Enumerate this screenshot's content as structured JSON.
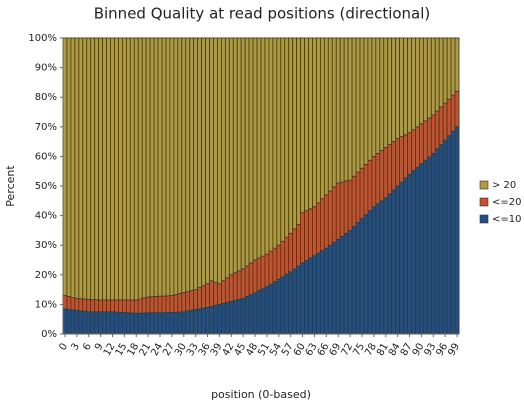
{
  "chart_data": {
    "type": "stacked_bar",
    "title": "Binned Quality at read positions (directional)",
    "x_label": "position (0-based)",
    "y_label": "Percent",
    "categories": [
      "0",
      null,
      null,
      "3",
      null,
      null,
      "6",
      null,
      null,
      "9",
      null,
      null,
      "12",
      null,
      null,
      "15",
      null,
      null,
      "18",
      null,
      null,
      "21",
      null,
      null,
      "24",
      null,
      null,
      "27",
      null,
      null,
      "30",
      null,
      null,
      "33",
      null,
      null,
      "36",
      null,
      null,
      "39",
      null,
      null,
      "42",
      null,
      null,
      "45",
      null,
      null,
      "48",
      null,
      null,
      "51",
      null,
      null,
      "54",
      null,
      null,
      "57",
      null,
      null,
      "60",
      null,
      null,
      "63",
      null,
      null,
      "66",
      null,
      null,
      "69",
      null,
      null,
      "72",
      null,
      null,
      "75",
      null,
      null,
      "78",
      null,
      null,
      "81",
      null,
      null,
      "84",
      null,
      null,
      "87",
      null,
      null,
      "90",
      null,
      null,
      "93",
      null,
      null,
      "96",
      null,
      null,
      "99"
    ],
    "series": [
      {
        "name": "<=10",
        "color": "#1f4f88",
        "values": [
          8.5,
          8.3,
          8.2,
          8,
          7.8,
          7.7,
          7.5,
          7.5,
          7.5,
          7.5,
          7.5,
          7.5,
          7.5,
          7.4,
          7.3,
          7.3,
          7.2,
          7.1,
          7,
          7,
          7.1,
          7.1,
          7.2,
          7.2,
          7.2,
          7.2,
          7.3,
          7.3,
          7.3,
          7.4,
          7.5,
          7.8,
          8,
          8.3,
          8.5,
          8.8,
          9,
          9.3,
          9.7,
          10,
          10.3,
          10.7,
          11,
          11.3,
          11.7,
          12,
          12.7,
          13.3,
          14,
          14.7,
          15.3,
          16,
          16.8,
          17.7,
          18.5,
          19.3,
          20.2,
          21,
          22,
          23,
          24,
          24.8,
          25.7,
          26.5,
          27.3,
          28.2,
          29,
          30,
          31,
          32,
          33,
          34,
          35,
          36.3,
          37.7,
          39,
          40.3,
          41.7,
          43,
          44,
          45,
          46,
          47.3,
          48.7,
          50,
          51.3,
          52.7,
          54,
          55.2,
          56.3,
          57.5,
          58.7,
          59.8,
          61,
          62.5,
          64,
          65.5,
          67,
          68.5,
          70
        ]
      },
      {
        "name": "<=20",
        "color": "#c8502a",
        "values": [
          4.5,
          4.4,
          4.1,
          4,
          4.1,
          4.1,
          4.2,
          4.1,
          4.1,
          4,
          4,
          4,
          4,
          4.1,
          4.2,
          4.2,
          4.3,
          4.4,
          4.5,
          4.8,
          5.1,
          5.4,
          5.4,
          5.5,
          5.6,
          5.6,
          5.6,
          5.7,
          6,
          6.3,
          6.5,
          6.5,
          6.7,
          6.7,
          7.2,
          7.5,
          8,
          8.7,
          7.8,
          7,
          7.7,
          8.3,
          9,
          9.4,
          9.6,
          10,
          10.3,
          10.7,
          11,
          11,
          11,
          11,
          11.2,
          11.3,
          11.5,
          12,
          12.5,
          13,
          13.5,
          14,
          17,
          16.9,
          16.6,
          16.5,
          17,
          17.5,
          18,
          18.3,
          18.7,
          19,
          18.3,
          17.7,
          17,
          17,
          17,
          17,
          17,
          17,
          17,
          17,
          17,
          17,
          16.7,
          16.3,
          16,
          15.4,
          14.6,
          14,
          13.8,
          13.7,
          13.5,
          13.3,
          13.2,
          13,
          12.8,
          12.7,
          12.5,
          12.3,
          12.2,
          12
        ]
      },
      {
        "name": "> 20",
        "color": "#b09a3c",
        "values": [
          87,
          87.3,
          87.7,
          88,
          88.1,
          88.2,
          88.3,
          88.4,
          88.4,
          88.5,
          88.5,
          88.5,
          88.5,
          88.5,
          88.5,
          88.5,
          88.5,
          88.5,
          88.5,
          88.2,
          87.8,
          87.5,
          87.4,
          87.3,
          87.2,
          87.2,
          87.1,
          87,
          86.7,
          86.3,
          86,
          85.7,
          85.3,
          85,
          84.3,
          83.7,
          83,
          82,
          82.5,
          83,
          82,
          81,
          80,
          79.3,
          78.7,
          78,
          77,
          76,
          75,
          74.3,
          73.7,
          73,
          72,
          71,
          70,
          68.7,
          67.3,
          66,
          64.5,
          63,
          59,
          58.3,
          57.7,
          57,
          55.7,
          54.3,
          53,
          51.7,
          50.3,
          49,
          48.7,
          48.3,
          48,
          46.7,
          45.3,
          44,
          42.7,
          41.3,
          40,
          39,
          38,
          37,
          36,
          35,
          34,
          33.3,
          32.7,
          32,
          31,
          30,
          29,
          28,
          27,
          26,
          24.7,
          23.3,
          22,
          20.7,
          19.3,
          18
        ]
      }
    ],
    "ylim": [
      0,
      100
    ],
    "yticks": [
      {
        "value": 0,
        "label": "0%"
      },
      {
        "value": 10,
        "label": "10%"
      },
      {
        "value": 20,
        "label": "20%"
      },
      {
        "value": 30,
        "label": "30%"
      },
      {
        "value": 40,
        "label": "40%"
      },
      {
        "value": 50,
        "label": "50%"
      },
      {
        "value": 60,
        "label": "60%"
      },
      {
        "value": 70,
        "label": "70%"
      },
      {
        "value": 80,
        "label": "80%"
      },
      {
        "value": 90,
        "label": "90%"
      },
      {
        "value": 100,
        "label": "100%"
      }
    ],
    "legend": "right"
  }
}
